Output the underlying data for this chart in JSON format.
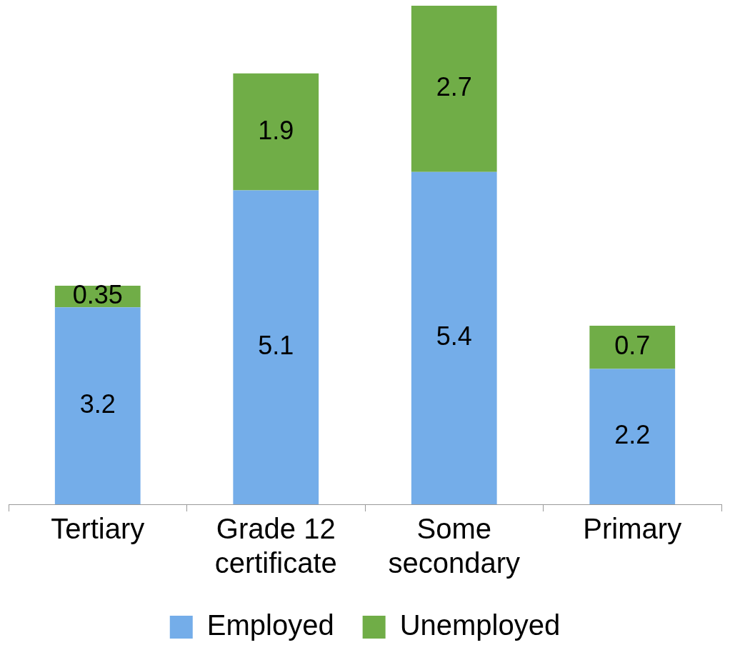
{
  "chart_data": {
    "type": "bar",
    "stacked": true,
    "categories": [
      "Tertiary",
      "Grade 12\ncertificate",
      "Some\nsecondary",
      "Primary"
    ],
    "series": [
      {
        "name": "Employed",
        "color": "#74ade9",
        "values": [
          3.2,
          5.1,
          5.4,
          2.2
        ]
      },
      {
        "name": "Unemployed",
        "color": "#70ad47",
        "values": [
          0.35,
          1.9,
          2.7,
          0.7
        ]
      }
    ],
    "data_labels": true,
    "legend": "bottom",
    "grid": false
  }
}
